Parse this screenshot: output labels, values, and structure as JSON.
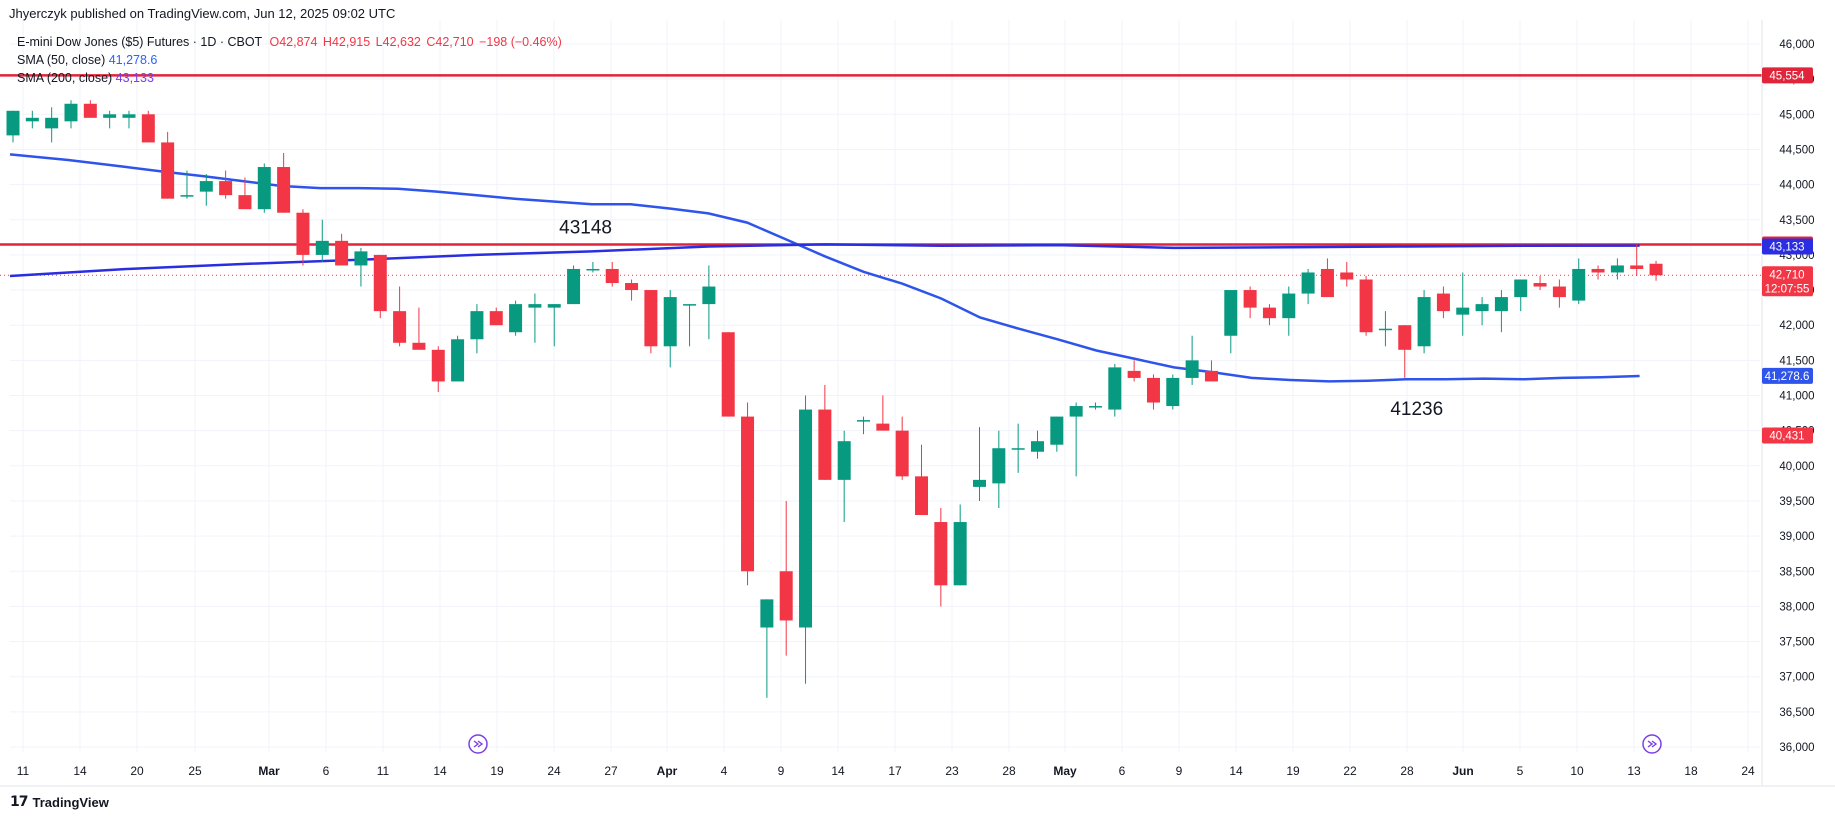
{
  "header": {
    "published": "Jhyerczyk published on TradingView.com, Jun 12, 2025 09:02 UTC"
  },
  "legend": {
    "symbol": "E-mini Dow Jones ($5) Futures · 1D · CBOT",
    "open": "O42,874",
    "high": "H42,915",
    "low": "L42,632",
    "close": "C42,710",
    "change": "−198 (−0.46%)",
    "sma50_label": "SMA (50, close)",
    "sma50_value": "41,278.6",
    "sma200_label": "SMA (200, close)",
    "sma200_value": "43,133"
  },
  "footer": {
    "brand": "TradingView"
  },
  "colors": {
    "up": "#089981",
    "down": "#f23645",
    "sma50": "#2f54eb",
    "sma200": "#2a2ee0",
    "hline": "#e0253a"
  },
  "chart_data": {
    "type": "candlestick",
    "ylim": [
      35800,
      46300
    ],
    "y_ticks": [
      "36,000",
      "36,500",
      "37,000",
      "37,500",
      "38,000",
      "38,500",
      "39,000",
      "39,500",
      "40,000",
      "40,500",
      "41,000",
      "41,500",
      "42,000",
      "42,500",
      "43,000",
      "43,500",
      "44,000",
      "44,500",
      "45,000",
      "45,500",
      "46,000"
    ],
    "x_ticks": [
      "11",
      "14",
      "20",
      "25",
      "Mar",
      "6",
      "11",
      "14",
      "19",
      "24",
      "27",
      "Apr",
      "4",
      "9",
      "14",
      "17",
      "23",
      "28",
      "May",
      "6",
      "9",
      "14",
      "19",
      "22",
      "28",
      "Jun",
      "5",
      "10",
      "13",
      "18",
      "24"
    ],
    "x_tick_bold": [
      "Mar",
      "Apr",
      "May",
      "Jun"
    ],
    "candles": [
      [
        44700,
        45050,
        44600,
        45050
      ],
      [
        44900,
        45050,
        44800,
        44950
      ],
      [
        44800,
        45100,
        44600,
        44950
      ],
      [
        44900,
        45200,
        44800,
        45150
      ],
      [
        45150,
        45200,
        44950,
        44950
      ],
      [
        44950,
        45050,
        44800,
        45000
      ],
      [
        44950,
        45050,
        44800,
        45000
      ],
      [
        45000,
        45050,
        44600,
        44600
      ],
      [
        44600,
        44750,
        43800,
        43800
      ],
      [
        43850,
        44200,
        43800,
        43850
      ],
      [
        43900,
        44150,
        43700,
        44050
      ],
      [
        44050,
        44200,
        43800,
        43850
      ],
      [
        43850,
        44100,
        43700,
        43650
      ],
      [
        43650,
        44300,
        43600,
        44250
      ],
      [
        44250,
        44450,
        43600,
        43600
      ],
      [
        43600,
        43650,
        42850,
        43000
      ],
      [
        43000,
        43500,
        42900,
        43200
      ],
      [
        43200,
        43300,
        42850,
        42850
      ],
      [
        42850,
        43100,
        42550,
        43050
      ],
      [
        43000,
        43000,
        42100,
        42200
      ],
      [
        42200,
        42550,
        41700,
        41750
      ],
      [
        41750,
        42250,
        41700,
        41650
      ],
      [
        41650,
        41700,
        41050,
        41200
      ],
      [
        41200,
        41850,
        41200,
        41800
      ],
      [
        41800,
        42300,
        41600,
        42200
      ],
      [
        42200,
        42250,
        42000,
        42000
      ],
      [
        41900,
        42350,
        41850,
        42300
      ],
      [
        42250,
        42450,
        41750,
        42300
      ],
      [
        42250,
        42300,
        41700,
        42300
      ],
      [
        42300,
        42850,
        42300,
        42800
      ],
      [
        42800,
        42900,
        42750,
        42800
      ],
      [
        42800,
        42900,
        42550,
        42600
      ],
      [
        42600,
        42650,
        42350,
        42500
      ],
      [
        42500,
        42500,
        41600,
        41700
      ],
      [
        41700,
        42500,
        41400,
        42400
      ],
      [
        42300,
        42300,
        41700,
        42300
      ],
      [
        42300,
        42850,
        41800,
        42550
      ],
      [
        41900,
        41900,
        40700,
        40700
      ],
      [
        40700,
        40900,
        38300,
        38500
      ],
      [
        37700,
        38100,
        36700,
        38100
      ],
      [
        38500,
        39500,
        37300,
        37800
      ],
      [
        37700,
        41000,
        36900,
        40800
      ],
      [
        40800,
        41150,
        39800,
        39800
      ],
      [
        39800,
        40500,
        39200,
        40350
      ],
      [
        40650,
        40700,
        40450,
        40650
      ],
      [
        40600,
        41000,
        40500,
        40500
      ],
      [
        40500,
        40700,
        39800,
        39850
      ],
      [
        39850,
        40300,
        39300,
        39300
      ],
      [
        39200,
        39400,
        38000,
        38300
      ],
      [
        38300,
        39450,
        38300,
        39200
      ],
      [
        39700,
        40550,
        39500,
        39800
      ],
      [
        39750,
        40500,
        39400,
        40250
      ],
      [
        40250,
        40600,
        39900,
        40250
      ],
      [
        40200,
        40500,
        40100,
        40350
      ],
      [
        40300,
        40700,
        40200,
        40700
      ],
      [
        40700,
        40900,
        39850,
        40850
      ],
      [
        40850,
        40900,
        40800,
        40850
      ],
      [
        40800,
        41450,
        40700,
        41400
      ],
      [
        41350,
        41500,
        41200,
        41250
      ],
      [
        41250,
        41300,
        40800,
        40900
      ],
      [
        40850,
        41300,
        40800,
        41250
      ],
      [
        41250,
        41850,
        41150,
        41500
      ],
      [
        41350,
        41500,
        41250,
        41200
      ],
      [
        41850,
        42500,
        41600,
        42500
      ],
      [
        42500,
        42550,
        42100,
        42250
      ],
      [
        42250,
        42300,
        42000,
        42100
      ],
      [
        42100,
        42550,
        41850,
        42450
      ],
      [
        42450,
        42800,
        42300,
        42750
      ],
      [
        42800,
        42950,
        42400,
        42400
      ],
      [
        42750,
        42900,
        42550,
        42650
      ],
      [
        42650,
        42700,
        41850,
        41900
      ],
      [
        41950,
        42200,
        41700,
        41950
      ],
      [
        42000,
        42000,
        41250,
        41650
      ],
      [
        41700,
        42500,
        41600,
        42400
      ],
      [
        42450,
        42550,
        42100,
        42200
      ],
      [
        42150,
        42750,
        41850,
        42250
      ],
      [
        42200,
        42400,
        42000,
        42300
      ],
      [
        42200,
        42500,
        41900,
        42400
      ],
      [
        42400,
        42600,
        42200,
        42650
      ],
      [
        42600,
        42700,
        42500,
        42550
      ],
      [
        42550,
        42650,
        42250,
        42400
      ],
      [
        42350,
        42950,
        42300,
        42800
      ],
      [
        42800,
        42850,
        42650,
        42750
      ],
      [
        42750,
        42950,
        42650,
        42850
      ],
      [
        42850,
        43150,
        42700,
        42800
      ],
      [
        42874,
        42915,
        42632,
        42710
      ]
    ],
    "sma50": [
      [
        0,
        44430
      ],
      [
        15,
        44350
      ],
      [
        30,
        44250
      ],
      [
        40,
        44180
      ],
      [
        50,
        44120
      ],
      [
        60,
        44050
      ],
      [
        70,
        43980
      ],
      [
        80,
        43950
      ],
      [
        90,
        43950
      ],
      [
        100,
        43940
      ],
      [
        110,
        43900
      ],
      [
        120,
        43850
      ],
      [
        130,
        43800
      ],
      [
        140,
        43760
      ],
      [
        150,
        43720
      ],
      [
        160,
        43720
      ],
      [
        170,
        43660
      ],
      [
        180,
        43590
      ],
      [
        190,
        43460
      ],
      [
        200,
        43220
      ],
      [
        210,
        42980
      ],
      [
        220,
        42760
      ],
      [
        230,
        42590
      ],
      [
        240,
        42380
      ],
      [
        250,
        42110
      ],
      [
        260,
        41950
      ],
      [
        270,
        41800
      ],
      [
        280,
        41640
      ],
      [
        290,
        41520
      ],
      [
        300,
        41400
      ],
      [
        310,
        41330
      ],
      [
        320,
        41250
      ],
      [
        330,
        41220
      ],
      [
        340,
        41200
      ],
      [
        350,
        41210
      ],
      [
        360,
        41230
      ],
      [
        370,
        41230
      ],
      [
        380,
        41240
      ],
      [
        390,
        41230
      ],
      [
        400,
        41250
      ],
      [
        410,
        41260
      ],
      [
        420,
        41278
      ]
    ],
    "sma200": [
      [
        0,
        42700
      ],
      [
        30,
        42800
      ],
      [
        60,
        42870
      ],
      [
        90,
        42930
      ],
      [
        120,
        43000
      ],
      [
        150,
        43050
      ],
      [
        180,
        43120
      ],
      [
        210,
        43150
      ],
      [
        240,
        43130
      ],
      [
        270,
        43140
      ],
      [
        300,
        43100
      ],
      [
        330,
        43110
      ],
      [
        360,
        43120
      ],
      [
        390,
        43130
      ],
      [
        420,
        43133
      ]
    ],
    "hlines": [
      {
        "value": 45554,
        "label": "45,554"
      },
      {
        "value": 43148,
        "label": "43,148"
      }
    ],
    "price_labels": [
      {
        "value": 43133,
        "label": "43,133",
        "color": "#2a2ee0"
      },
      {
        "value": 42710,
        "label": "42,710",
        "sub": "12:07:55",
        "color": "#f23645"
      },
      {
        "value": 41278.6,
        "label": "41,278.6",
        "color": "#2f54eb"
      },
      {
        "value": 40431,
        "label": "40,431",
        "color": "#f23645"
      }
    ],
    "annotations": [
      {
        "text": "43148",
        "bar": 29,
        "value": 43148
      },
      {
        "text": "41236",
        "bar": 72,
        "value": 41236
      }
    ],
    "last_close": 42710
  }
}
